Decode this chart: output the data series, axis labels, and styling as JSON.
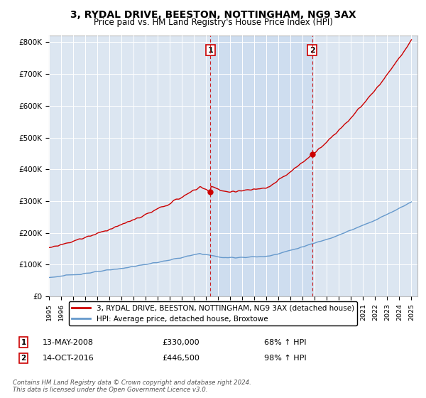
{
  "title": "3, RYDAL DRIVE, BEESTON, NOTTINGHAM, NG9 3AX",
  "subtitle": "Price paid vs. HM Land Registry's House Price Index (HPI)",
  "ylabel_ticks": [
    "£0",
    "£100K",
    "£200K",
    "£300K",
    "£400K",
    "£500K",
    "£600K",
    "£700K",
    "£800K"
  ],
  "ytick_values": [
    0,
    100000,
    200000,
    300000,
    400000,
    500000,
    600000,
    700000,
    800000
  ],
  "ylim": [
    0,
    820000
  ],
  "xlim_start": 1995.0,
  "xlim_end": 2025.5,
  "sale1_x": 2008.36,
  "sale1_y": 330000,
  "sale1_label": "1",
  "sale2_x": 2016.79,
  "sale2_y": 446500,
  "sale2_label": "2",
  "legend_line1": "3, RYDAL DRIVE, BEESTON, NOTTINGHAM, NG9 3AX (detached house)",
  "legend_line2": "HPI: Average price, detached house, Broxtowe",
  "note1_label": "1",
  "note1_date": "13-MAY-2008",
  "note1_price": "£330,000",
  "note1_hpi": "68% ↑ HPI",
  "note2_label": "2",
  "note2_date": "14-OCT-2016",
  "note2_price": "£446,500",
  "note2_hpi": "98% ↑ HPI",
  "footnote": "Contains HM Land Registry data © Crown copyright and database right 2024.\nThis data is licensed under the Open Government Licence v3.0.",
  "red_color": "#cc0000",
  "blue_color": "#6699cc",
  "bg_color": "#dce6f1",
  "shade_color": "#c5d8ee",
  "grid_color": "#ffffff",
  "annotation_box_color": "#cc0000"
}
